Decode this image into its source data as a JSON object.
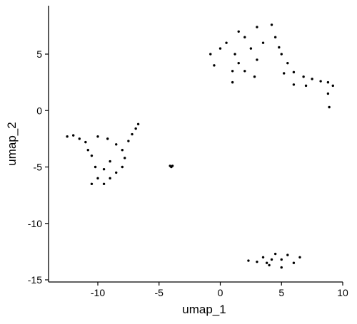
{
  "chart_data": {
    "type": "scatter",
    "title": "",
    "xlabel": "umap_1",
    "ylabel": "umap_2",
    "xlim": [
      -14.0,
      10.5
    ],
    "ylim": [
      -15.2,
      9.0
    ],
    "x_ticks": [
      -10,
      -5,
      0,
      5,
      10
    ],
    "x_tick_labels": [
      "-10",
      "-5",
      "0",
      "5",
      "10"
    ],
    "y_ticks": [
      -15,
      -10,
      -5,
      0,
      5
    ],
    "y_tick_labels": [
      "-15",
      "-10",
      "-5",
      "0",
      "5"
    ],
    "grid": false,
    "legend": "none",
    "point_color": "#000000",
    "series": [
      {
        "values": [
          {
            "x": 1.2,
            "y": 5.0
          },
          {
            "x": 1.0,
            "y": 3.5
          },
          {
            "x": 2.0,
            "y": 6.5
          },
          {
            "x": 0.5,
            "y": 6.0
          },
          {
            "x": 2.5,
            "y": 5.5
          },
          {
            "x": 1.5,
            "y": 7.0
          },
          {
            "x": 3.0,
            "y": 7.4
          },
          {
            "x": -0.5,
            "y": 4.0
          },
          {
            "x": 0.0,
            "y": 5.5
          },
          {
            "x": 2.0,
            "y": 3.5
          },
          {
            "x": 3.0,
            "y": 4.5
          },
          {
            "x": 1.0,
            "y": 2.5
          },
          {
            "x": 3.5,
            "y": 6.0
          },
          {
            "x": -0.8,
            "y": 5.0
          },
          {
            "x": 1.5,
            "y": 4.2
          },
          {
            "x": 2.8,
            "y": 3.0
          },
          {
            "x": 4.2,
            "y": 7.6
          },
          {
            "x": 4.5,
            "y": 6.5
          },
          {
            "x": 4.8,
            "y": 5.6
          },
          {
            "x": 5.0,
            "y": 5.0
          },
          {
            "x": 5.5,
            "y": 4.2
          },
          {
            "x": 5.2,
            "y": 3.3
          },
          {
            "x": 6.0,
            "y": 3.4
          },
          {
            "x": 6.8,
            "y": 3.0
          },
          {
            "x": 7.5,
            "y": 2.8
          },
          {
            "x": 8.2,
            "y": 2.6
          },
          {
            "x": 8.8,
            "y": 2.5
          },
          {
            "x": 9.2,
            "y": 2.2
          },
          {
            "x": 8.8,
            "y": 1.5
          },
          {
            "x": 8.9,
            "y": 0.3
          },
          {
            "x": 7.0,
            "y": 2.2
          },
          {
            "x": 6.0,
            "y": 2.3
          },
          {
            "x": -12.5,
            "y": -2.3
          },
          {
            "x": -12.0,
            "y": -2.2
          },
          {
            "x": -11.5,
            "y": -2.5
          },
          {
            "x": -11.0,
            "y": -2.8
          },
          {
            "x": -10.8,
            "y": -3.5
          },
          {
            "x": -10.5,
            "y": -4.0
          },
          {
            "x": -10.2,
            "y": -5.0
          },
          {
            "x": -10.0,
            "y": -6.0
          },
          {
            "x": -10.5,
            "y": -6.5
          },
          {
            "x": -9.5,
            "y": -6.5
          },
          {
            "x": -9.0,
            "y": -6.0
          },
          {
            "x": -8.5,
            "y": -5.5
          },
          {
            "x": -8.0,
            "y": -5.0
          },
          {
            "x": -7.8,
            "y": -4.2
          },
          {
            "x": -8.0,
            "y": -3.5
          },
          {
            "x": -8.5,
            "y": -3.0
          },
          {
            "x": -9.2,
            "y": -2.5
          },
          {
            "x": -10.0,
            "y": -2.3
          },
          {
            "x": -7.5,
            "y": -2.7
          },
          {
            "x": -7.2,
            "y": -2.1
          },
          {
            "x": -6.9,
            "y": -1.6
          },
          {
            "x": -6.7,
            "y": -1.2
          },
          {
            "x": -9.0,
            "y": -4.5
          },
          {
            "x": -9.5,
            "y": -5.2
          },
          {
            "x": -4.1,
            "y": -4.9
          },
          {
            "x": -4.0,
            "y": -5.0
          },
          {
            "x": -3.9,
            "y": -4.9
          },
          {
            "x": 2.3,
            "y": -13.3
          },
          {
            "x": 3.0,
            "y": -13.4
          },
          {
            "x": 3.5,
            "y": -13.0
          },
          {
            "x": 4.0,
            "y": -13.7
          },
          {
            "x": 4.5,
            "y": -12.7
          },
          {
            "x": 5.0,
            "y": -13.9
          },
          {
            "x": 5.5,
            "y": -12.8
          },
          {
            "x": 6.0,
            "y": -13.5
          },
          {
            "x": 6.5,
            "y": -13.0
          },
          {
            "x": 5.0,
            "y": -13.2
          },
          {
            "x": 4.2,
            "y": -13.2
          },
          {
            "x": 3.8,
            "y": -13.5
          }
        ]
      }
    ]
  }
}
